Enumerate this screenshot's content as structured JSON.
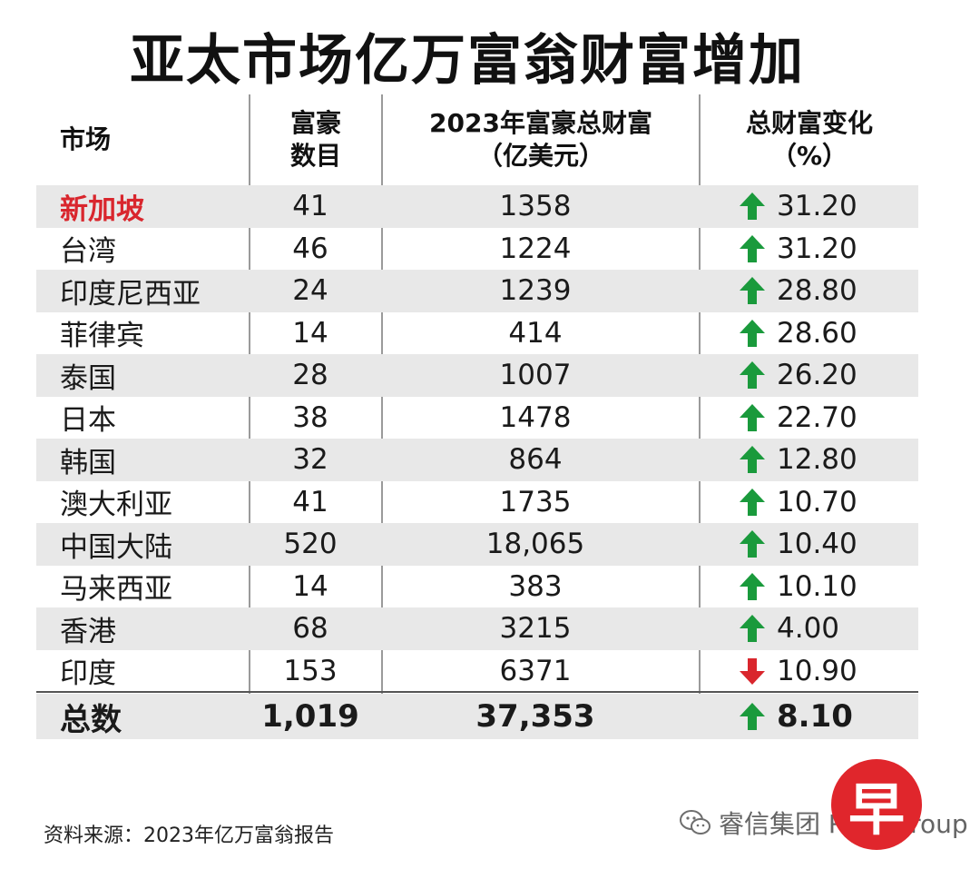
{
  "title": "亚太市场亿万富翁财富增加",
  "table": {
    "headers": {
      "market": "市场",
      "count_line1": "富豪",
      "count_line2": "数目",
      "wealth_line1": "2023年富豪总财富",
      "wealth_line2": "（亿美元）",
      "change_line1": "总财富变化",
      "change_line2": "（%）"
    },
    "rows": [
      {
        "market": "新加坡",
        "count": "41",
        "wealth": "1358",
        "direction": "up",
        "change": "31.20"
      },
      {
        "market": "台湾",
        "count": "46",
        "wealth": "1224",
        "direction": "up",
        "change": "31.20"
      },
      {
        "market": "印度尼西亚",
        "count": "24",
        "wealth": "1239",
        "direction": "up",
        "change": "28.80"
      },
      {
        "market": "菲律宾",
        "count": "14",
        "wealth": "414",
        "direction": "up",
        "change": "28.60"
      },
      {
        "market": "泰国",
        "count": "28",
        "wealth": "1007",
        "direction": "up",
        "change": "26.20"
      },
      {
        "market": "日本",
        "count": "38",
        "wealth": "1478",
        "direction": "up",
        "change": "22.70"
      },
      {
        "market": "韩国",
        "count": "32",
        "wealth": "864",
        "direction": "up",
        "change": "12.80"
      },
      {
        "market": "澳大利亚",
        "count": "41",
        "wealth": "1735",
        "direction": "up",
        "change": "10.70"
      },
      {
        "market": "中国大陆",
        "count": "520",
        "wealth": "18,065",
        "direction": "up",
        "change": "10.40"
      },
      {
        "market": "马来西亚",
        "count": "14",
        "wealth": "383",
        "direction": "up",
        "change": "10.10"
      },
      {
        "market": "香港",
        "count": "68",
        "wealth": "3215",
        "direction": "up",
        "change": "4.00"
      },
      {
        "market": "印度",
        "count": "153",
        "wealth": "6371",
        "direction": "down",
        "change": "10.90"
      }
    ],
    "total": {
      "market": "总数",
      "count": "1,019",
      "wealth": "37,353",
      "direction": "up",
      "change": "8.10"
    }
  },
  "colors": {
    "up_arrow": "#1a9a3c",
    "down_arrow": "#d9262d",
    "highlight": "#d9262d",
    "shade": "#e8e8e8"
  },
  "icons": {
    "up": "arrow-up-icon",
    "down": "arrow-down-icon"
  },
  "source": "资料来源：2023年亿万富翁报告",
  "logo_char": "早",
  "watermark": "睿信集团 Rsin Group"
}
